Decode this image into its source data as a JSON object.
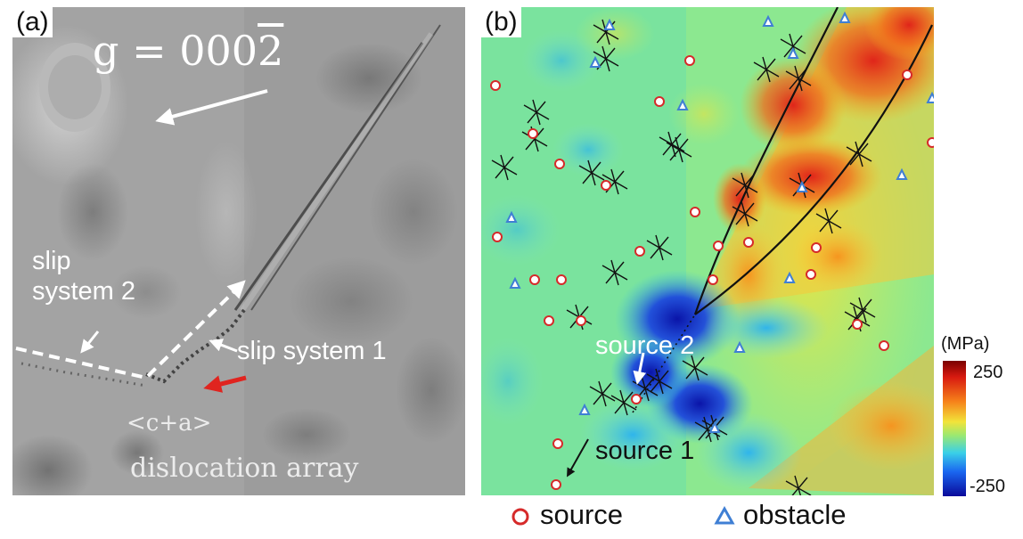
{
  "panel_a": {
    "label": "(a)",
    "g_vector": "g = 000",
    "g_bar": "2",
    "slip2_line1": "slip",
    "slip2_line2": "system 2",
    "slip1": "slip system 1",
    "array_line1": "<c+a>",
    "array_line2": "dislocation array"
  },
  "panel_b": {
    "label": "(b)",
    "source2": "source 2",
    "source1": "source 1"
  },
  "colorbar": {
    "unit": "(MPa)",
    "max": "250",
    "min": "-250"
  },
  "legend": {
    "source": "source",
    "obstacle": "obstacle"
  },
  "colors": {
    "source_marker": "#d62a2a",
    "obstacle_marker": "#3f7fd4",
    "arrow_red": "#e0241f"
  }
}
